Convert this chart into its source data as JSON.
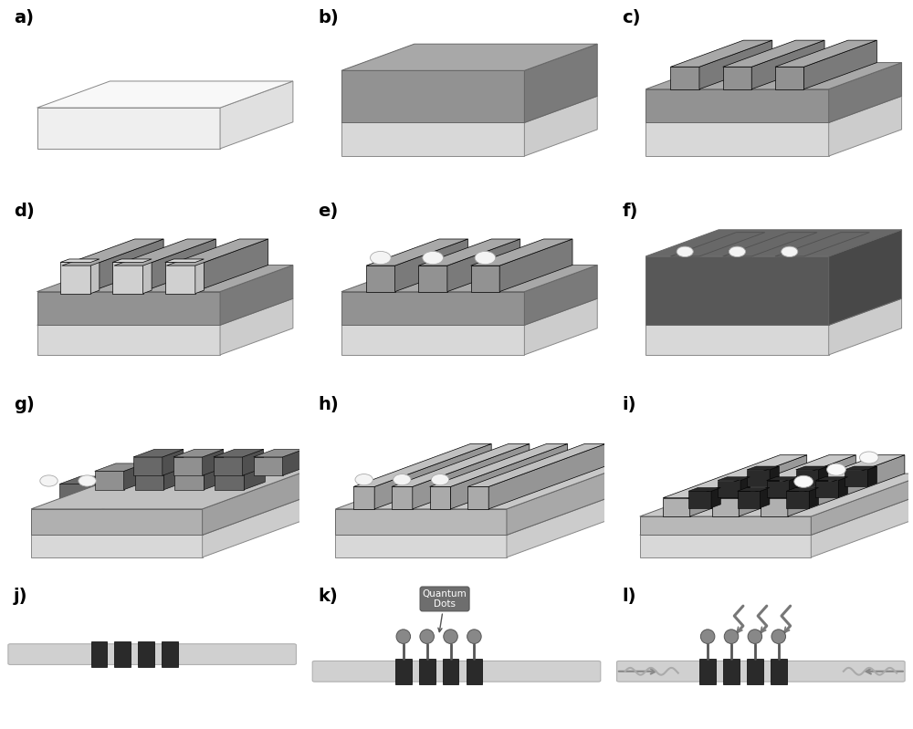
{
  "labels": [
    "a)",
    "b)",
    "c)",
    "d)",
    "e)",
    "f)",
    "g)",
    "h)",
    "i)",
    "j)",
    "k)",
    "l)"
  ],
  "label_fontsize": 14,
  "label_fontweight": "bold",
  "bg": "#ffffff",
  "c_white_top": "#f8f8f8",
  "c_white_front": "#efefef",
  "c_white_side": "#e0e0e0",
  "c_base_top": "#e8e8e8",
  "c_base_front": "#d8d8d8",
  "c_base_side": "#cccccc",
  "c_gray_top": "#a8a8a8",
  "c_gray_front": "#929292",
  "c_gray_side": "#7a7a7a",
  "c_dark_top": "#686868",
  "c_dark_front": "#585858",
  "c_dark_side": "#484848",
  "c_ridge_top": "#a0a0a0",
  "c_ridge_front": "#888888",
  "c_ridge_side": "#727272",
  "c_block_dark": "#2a2a2a",
  "c_sphere": "#f4f4f4",
  "c_sphere_edge": "#aaaaaa",
  "c_wire": "#d0d0d0",
  "c_qd_fill": "#888888",
  "c_ann_bg": "#6e6e6e"
}
